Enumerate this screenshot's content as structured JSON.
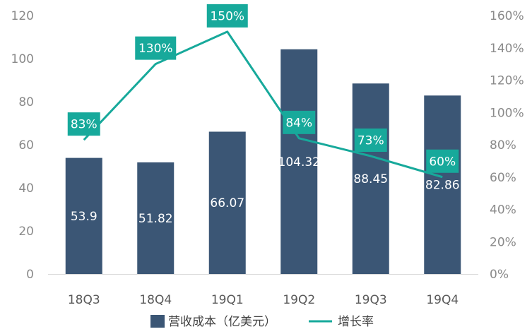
{
  "chart_data": {
    "type": "bar+line",
    "categories": [
      "18Q3",
      "18Q4",
      "19Q1",
      "19Q2",
      "19Q3",
      "19Q4"
    ],
    "series": [
      {
        "name": "营收成本（亿美元）",
        "type": "bar",
        "axis": "left",
        "values": [
          53.9,
          51.82,
          66.07,
          104.32,
          88.45,
          82.86
        ],
        "labels": [
          "53.9",
          "51.82",
          "66.07",
          "104.32",
          "88.45",
          "82.86"
        ],
        "color": "#3b5675"
      },
      {
        "name": "增长率",
        "type": "line",
        "axis": "right",
        "values": [
          83,
          130,
          150,
          84,
          73,
          60
        ],
        "labels": [
          "83%",
          "130%",
          "150%",
          "84%",
          "73%",
          "60%"
        ],
        "color": "#17a99b"
      }
    ],
    "y_left": {
      "min": 0,
      "max": 120,
      "ticks": [
        "0",
        "20",
        "40",
        "60",
        "80",
        "100",
        "120"
      ]
    },
    "y_right": {
      "min": 0,
      "max": 160,
      "ticks": [
        "0%",
        "20%",
        "40%",
        "60%",
        "80%",
        "100%",
        "120%",
        "140%",
        "160%"
      ]
    },
    "grid": false,
    "legend_position": "bottom"
  }
}
